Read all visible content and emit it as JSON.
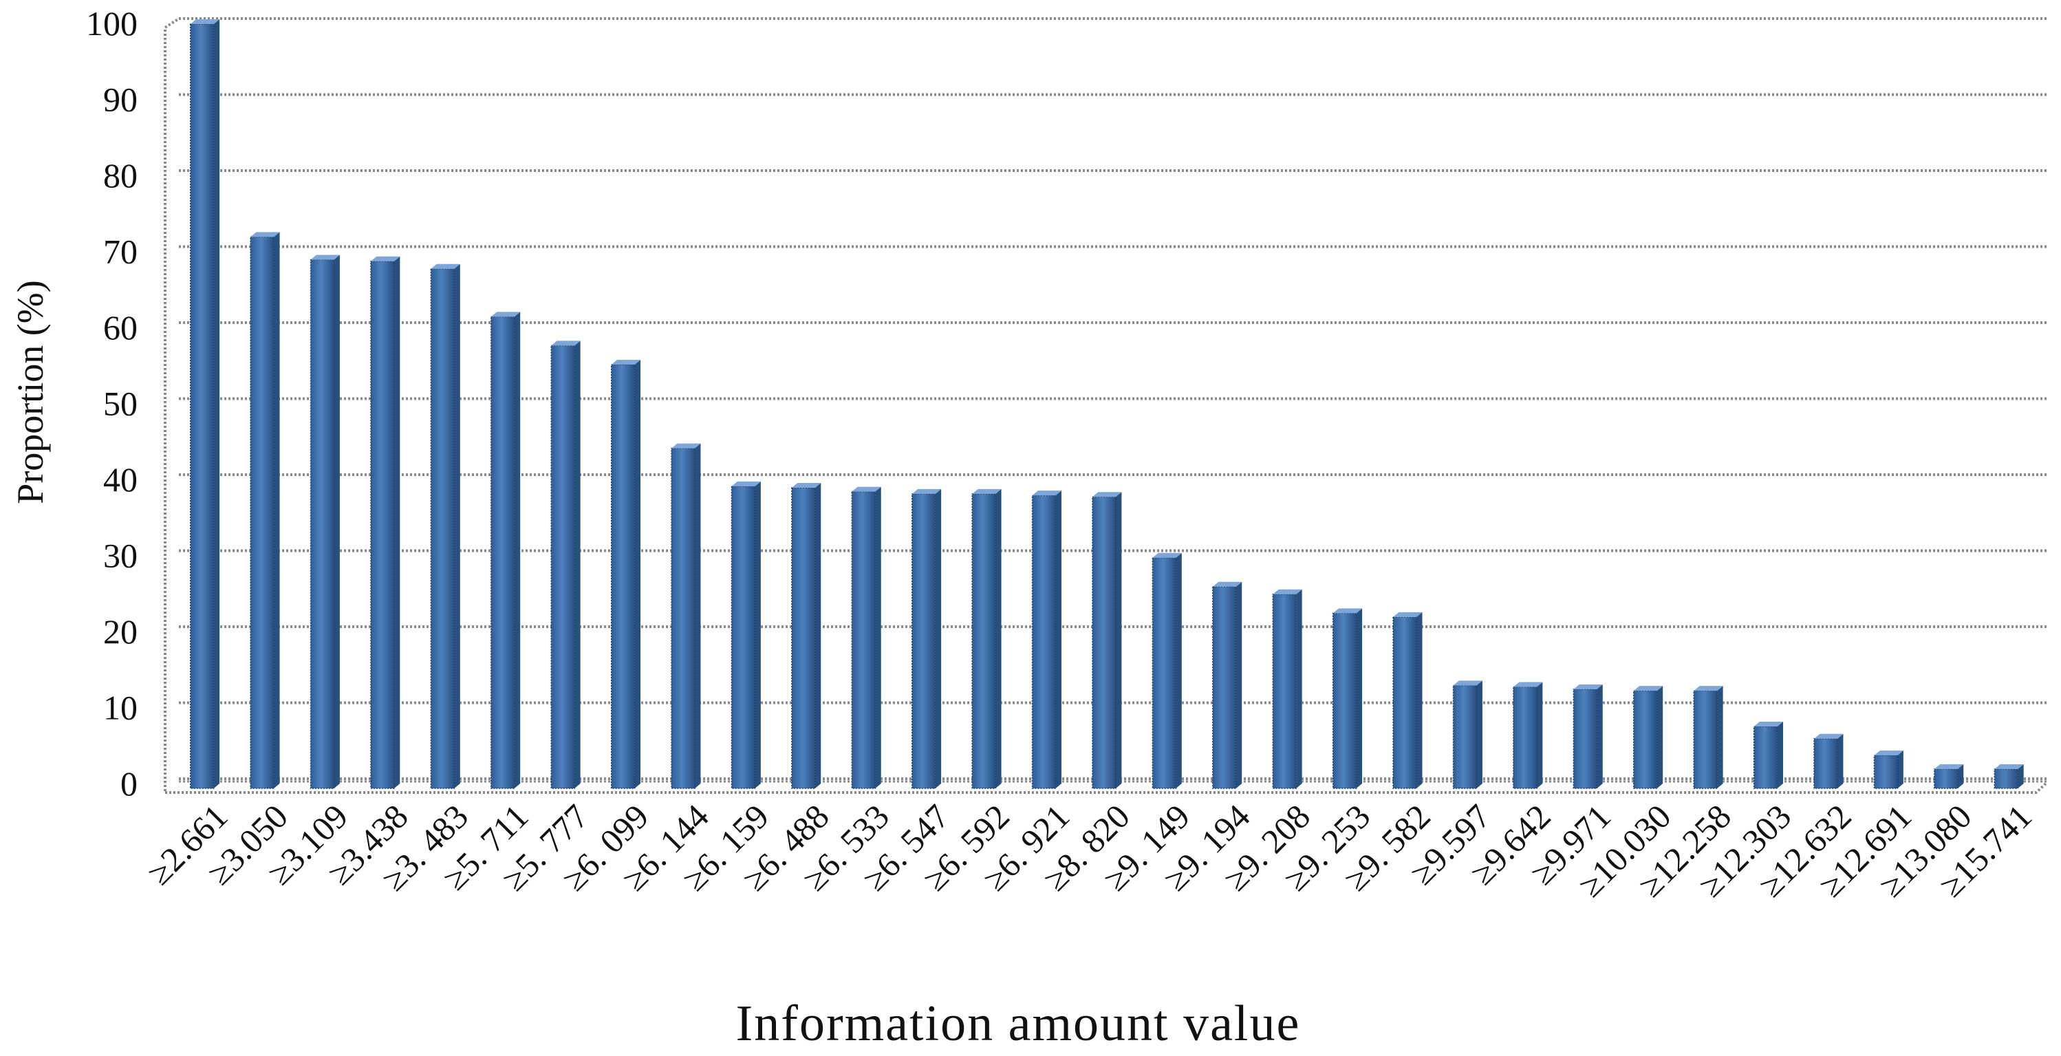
{
  "chart_data": {
    "type": "bar",
    "xlabel": "Information amount value",
    "ylabel": "Proportion (%)",
    "ylim": [
      0,
      100
    ],
    "yticks": [
      0,
      10,
      20,
      30,
      40,
      50,
      60,
      70,
      80,
      90,
      100
    ],
    "grid": true,
    "categories": [
      "≥2.661",
      "≥3.050",
      "≥3.109",
      "≥3.438",
      "≥3. 483",
      "≥5. 711",
      "≥5. 777",
      "≥6. 099",
      "≥6. 144",
      "≥6. 159",
      "≥6. 488",
      "≥6. 533",
      "≥6. 547",
      "≥6. 592",
      "≥6. 921",
      "≥8. 820",
      "≥9. 149",
      "≥9. 194",
      "≥9. 208",
      "≥9. 253",
      "≥9. 582",
      "≥9.597",
      "≥9.642",
      "≥9.971",
      "≥10.030",
      "≥12.258",
      "≥12.303",
      "≥12.632",
      "≥12.691",
      "≥13.080",
      "≥15.741"
    ],
    "values": [
      100,
      72,
      69,
      68.8,
      67.8,
      61.5,
      57.7,
      55.2,
      44.2,
      39.2,
      39,
      38.5,
      38.2,
      38.2,
      38,
      37.8,
      29.8,
      26,
      25,
      22.5,
      22,
      13,
      12.8,
      12.5,
      12.3,
      12.3,
      7.6,
      6,
      3.8,
      2,
      2
    ],
    "bar_color": "#4f81bd"
  }
}
